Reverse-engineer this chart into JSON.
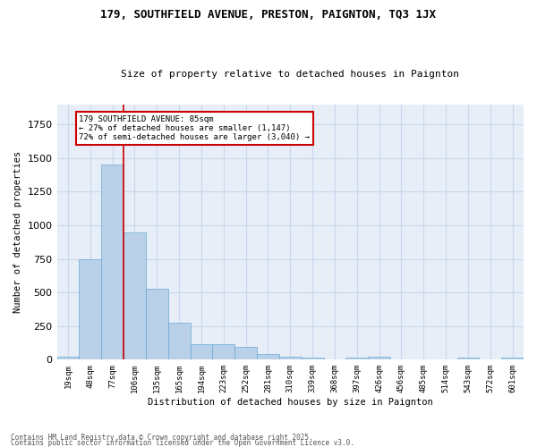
{
  "title": "179, SOUTHFIELD AVENUE, PRESTON, PAIGNTON, TQ3 1JX",
  "subtitle": "Size of property relative to detached houses in Paignton",
  "xlabel": "Distribution of detached houses by size in Paignton",
  "ylabel": "Number of detached properties",
  "bar_values": [
    20,
    750,
    1450,
    945,
    530,
    275,
    115,
    115,
    95,
    45,
    25,
    15,
    0,
    15,
    20,
    0,
    0,
    0,
    15,
    0,
    15
  ],
  "bar_labels": [
    "19sqm",
    "48sqm",
    "77sqm",
    "106sqm",
    "135sqm",
    "165sqm",
    "194sqm",
    "223sqm",
    "252sqm",
    "281sqm",
    "310sqm",
    "339sqm",
    "368sqm",
    "397sqm",
    "426sqm",
    "456sqm",
    "485sqm",
    "514sqm",
    "543sqm",
    "572sqm",
    "601sqm"
  ],
  "bar_color": "#b8d0e8",
  "bar_edge_color": "#6aaad4",
  "grid_color": "#c8d8ec",
  "bg_color": "#e8eef8",
  "annotation_box_color": "#cc0000",
  "vline_color": "#cc0000",
  "annotation_line1": "179 SOUTHFIELD AVENUE: 85sqm",
  "annotation_line2": "← 27% of detached houses are smaller (1,147)",
  "annotation_line3": "72% of semi-detached houses are larger (3,040) →",
  "vline_x_index": 2,
  "ylim": [
    0,
    1900
  ],
  "footer1": "Contains HM Land Registry data © Crown copyright and database right 2025.",
  "footer2": "Contains public sector information licensed under the Open Government Licence v3.0."
}
